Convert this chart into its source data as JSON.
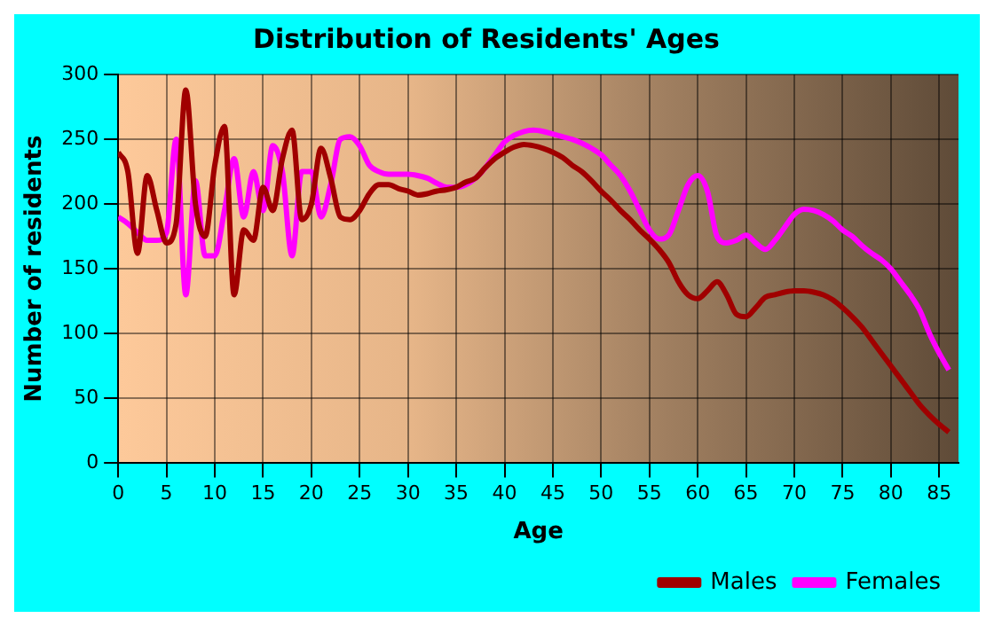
{
  "chart_data": {
    "type": "line",
    "title": "Distribution of Residents' Ages",
    "xlabel": "Age",
    "ylabel": "Number of residents",
    "x": [
      0,
      1,
      2,
      3,
      4,
      5,
      6,
      7,
      8,
      9,
      10,
      11,
      12,
      13,
      14,
      15,
      16,
      17,
      18,
      19,
      20,
      21,
      22,
      23,
      24,
      25,
      26,
      27,
      28,
      29,
      30,
      31,
      32,
      33,
      34,
      35,
      36,
      37,
      38,
      39,
      40,
      41,
      42,
      43,
      44,
      45,
      46,
      47,
      48,
      49,
      50,
      51,
      52,
      53,
      54,
      55,
      56,
      57,
      58,
      59,
      60,
      61,
      62,
      63,
      64,
      65,
      66,
      67,
      68,
      69,
      70,
      71,
      72,
      73,
      74,
      75,
      76,
      77,
      78,
      79,
      80,
      81,
      82,
      83,
      84,
      85,
      86
    ],
    "series": [
      {
        "name": "Males",
        "color": "#a00000",
        "values": [
          240,
          225,
          162,
          222,
          195,
          170,
          185,
          288,
          200,
          175,
          230,
          260,
          130,
          180,
          172,
          213,
          195,
          235,
          257,
          188,
          200,
          243,
          220,
          190,
          188,
          195,
          208,
          215,
          215,
          212,
          210,
          207,
          208,
          210,
          211,
          213,
          217,
          220,
          228,
          235,
          240,
          244,
          246,
          245,
          243,
          240,
          236,
          230,
          225,
          218,
          210,
          203,
          195,
          188,
          180,
          173,
          165,
          155,
          140,
          130,
          127,
          133,
          140,
          130,
          115,
          113,
          120,
          128,
          130,
          132,
          133,
          133,
          132,
          130,
          126,
          120,
          113,
          105,
          95,
          85,
          75,
          65,
          55,
          45,
          37,
          30,
          24
        ]
      },
      {
        "name": "Females",
        "color": "#ff00ff",
        "values": [
          190,
          185,
          178,
          172,
          172,
          178,
          250,
          130,
          218,
          160,
          160,
          195,
          235,
          190,
          225,
          195,
          245,
          225,
          160,
          225,
          225,
          190,
          215,
          250,
          252,
          245,
          230,
          225,
          223,
          223,
          223,
          222,
          220,
          216,
          213,
          213,
          215,
          220,
          228,
          238,
          248,
          253,
          256,
          257,
          256,
          254,
          252,
          250,
          247,
          243,
          238,
          230,
          222,
          210,
          195,
          180,
          173,
          176,
          195,
          215,
          222,
          210,
          175,
          170,
          172,
          176,
          170,
          165,
          172,
          182,
          192,
          196,
          195,
          192,
          187,
          180,
          175,
          168,
          162,
          157,
          150,
          140,
          130,
          118,
          100,
          85,
          72
        ]
      }
    ],
    "xlim": [
      0,
      87
    ],
    "xticks": [
      0,
      5,
      10,
      15,
      20,
      25,
      30,
      35,
      40,
      45,
      50,
      55,
      60,
      65,
      70,
      75,
      80,
      85
    ],
    "ylim": [
      0,
      300
    ],
    "yticks": [
      0,
      50,
      100,
      150,
      200,
      250,
      300
    ],
    "grid": true,
    "legend": "bottom right",
    "marker": "none",
    "line_style": "solid"
  }
}
